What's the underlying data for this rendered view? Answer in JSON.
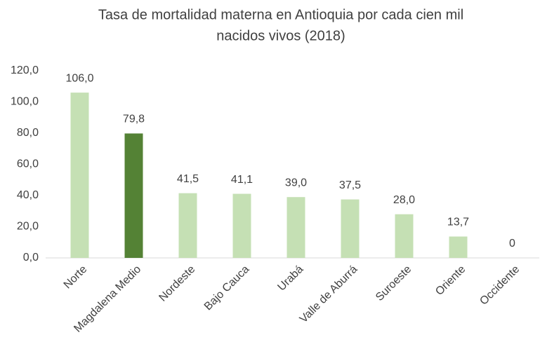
{
  "chart_data": {
    "type": "bar",
    "title": [
      "Tasa de mortalidad materna en Antioquia por cada cien mil",
      "nacidos vivos (2018)"
    ],
    "categories": [
      "Norte",
      "Magdalena Medio",
      "Nordeste",
      "Bajo Cauca",
      "Urabá",
      "Valle de Aburrá",
      "Suroeste",
      "Oriente",
      "Occidente"
    ],
    "values": [
      106.0,
      79.8,
      41.5,
      41.1,
      39.0,
      37.5,
      28.0,
      13.7,
      0
    ],
    "value_labels": [
      "106,0",
      "79,8",
      "41,5",
      "41,1",
      "39,0",
      "37,5",
      "28,0",
      "13,7",
      "0"
    ],
    "colors": [
      "#c5e0b4",
      "#548235",
      "#c5e0b4",
      "#c5e0b4",
      "#c5e0b4",
      "#c5e0b4",
      "#c5e0b4",
      "#c5e0b4",
      "#c5e0b4"
    ],
    "ylim": [
      0,
      120
    ],
    "yticks": [
      {
        "value": 0,
        "label": "0,0"
      },
      {
        "value": 20,
        "label": "20,0"
      },
      {
        "value": 40,
        "label": "40,0"
      },
      {
        "value": 60,
        "label": "60,0"
      },
      {
        "value": 80,
        "label": "80,0"
      },
      {
        "value": 100,
        "label": "100,0"
      },
      {
        "value": 120,
        "label": "120,0"
      }
    ],
    "grid": false
  }
}
